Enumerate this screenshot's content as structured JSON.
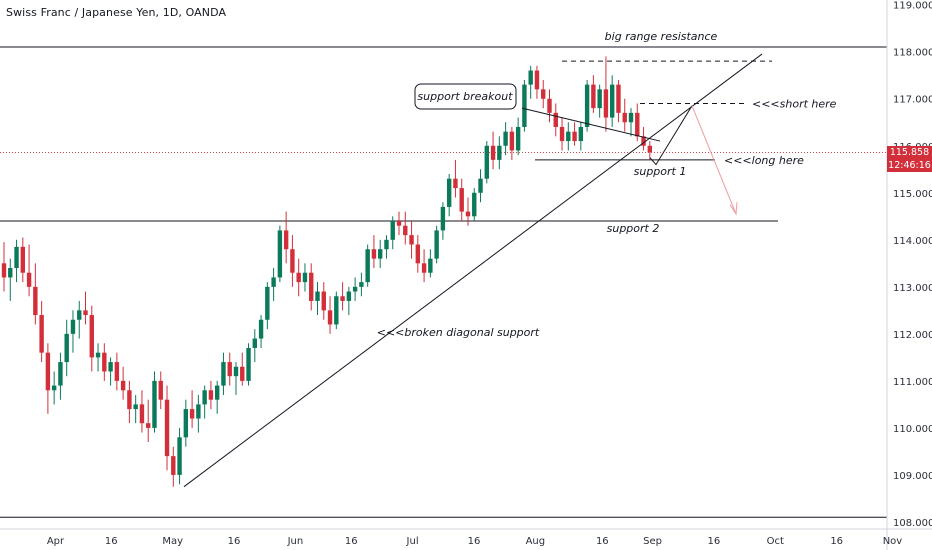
{
  "chart_data": {
    "type": "candlestick",
    "title": "Swiss Franc / Japanese Yen, 1D, OANDA",
    "symbol": "CHFJPY",
    "timeframe": "1D",
    "source": "OANDA",
    "y_axis": {
      "range": [
        107.85,
        119.1
      ],
      "ticks": [
        "108.000",
        "109.000",
        "110.000",
        "111.000",
        "112.000",
        "113.000",
        "114.000",
        "115.000",
        "116.000",
        "117.000",
        "118.000",
        "119.000"
      ]
    },
    "x_axis": {
      "ticks": [
        "Apr",
        "16",
        "May",
        "16",
        "Jun",
        "16",
        "Jul",
        "16",
        "Aug",
        "16",
        "Sep",
        "16",
        "Oct",
        "16",
        "Nov"
      ]
    },
    "current_price": "115.858",
    "countdown": "12:46:16",
    "colors": {
      "up": "#0b7a5a",
      "down": "#d32f3a",
      "line": "#131722",
      "projection": "#f19ba0",
      "axis_text": "#2a2e39"
    },
    "candles": [
      {
        "o": 113.5,
        "h": 113.95,
        "l": 112.9,
        "c": 113.2
      },
      {
        "o": 113.2,
        "h": 113.6,
        "l": 112.7,
        "c": 113.4
      },
      {
        "o": 113.4,
        "h": 114.0,
        "l": 113.1,
        "c": 113.85
      },
      {
        "o": 113.85,
        "h": 114.05,
        "l": 113.1,
        "c": 113.3
      },
      {
        "o": 113.3,
        "h": 113.9,
        "l": 112.8,
        "c": 113.0
      },
      {
        "o": 113.0,
        "h": 113.5,
        "l": 112.2,
        "c": 112.4
      },
      {
        "o": 112.4,
        "h": 112.7,
        "l": 111.4,
        "c": 111.6
      },
      {
        "o": 111.6,
        "h": 111.8,
        "l": 110.3,
        "c": 110.8
      },
      {
        "o": 110.8,
        "h": 111.2,
        "l": 110.5,
        "c": 110.9
      },
      {
        "o": 110.9,
        "h": 111.6,
        "l": 110.6,
        "c": 111.4
      },
      {
        "o": 111.4,
        "h": 112.3,
        "l": 111.1,
        "c": 112.0
      },
      {
        "o": 112.0,
        "h": 112.5,
        "l": 111.6,
        "c": 112.3
      },
      {
        "o": 112.3,
        "h": 112.7,
        "l": 111.9,
        "c": 112.5
      },
      {
        "o": 112.5,
        "h": 112.9,
        "l": 112.2,
        "c": 112.4
      },
      {
        "o": 112.4,
        "h": 112.6,
        "l": 111.2,
        "c": 111.5
      },
      {
        "o": 111.5,
        "h": 111.8,
        "l": 111.2,
        "c": 111.6
      },
      {
        "o": 111.6,
        "h": 111.8,
        "l": 111.0,
        "c": 111.2
      },
      {
        "o": 111.2,
        "h": 111.5,
        "l": 110.9,
        "c": 111.4
      },
      {
        "o": 111.4,
        "h": 111.6,
        "l": 110.8,
        "c": 111.0
      },
      {
        "o": 111.0,
        "h": 111.3,
        "l": 110.6,
        "c": 110.8
      },
      {
        "o": 110.8,
        "h": 111.0,
        "l": 110.1,
        "c": 110.4
      },
      {
        "o": 110.4,
        "h": 110.7,
        "l": 110.1,
        "c": 110.5
      },
      {
        "o": 110.5,
        "h": 110.8,
        "l": 109.9,
        "c": 110.1
      },
      {
        "o": 110.1,
        "h": 110.6,
        "l": 109.7,
        "c": 110.0
      },
      {
        "o": 110.0,
        "h": 111.2,
        "l": 109.9,
        "c": 111.0
      },
      {
        "o": 111.0,
        "h": 111.2,
        "l": 110.4,
        "c": 110.6
      },
      {
        "o": 110.6,
        "h": 110.9,
        "l": 109.1,
        "c": 109.4
      },
      {
        "o": 109.4,
        "h": 109.6,
        "l": 108.75,
        "c": 109.0
      },
      {
        "o": 109.0,
        "h": 110.0,
        "l": 108.8,
        "c": 109.8
      },
      {
        "o": 109.8,
        "h": 110.6,
        "l": 109.6,
        "c": 110.4
      },
      {
        "o": 110.4,
        "h": 110.8,
        "l": 110.0,
        "c": 110.2
      },
      {
        "o": 110.2,
        "h": 110.7,
        "l": 109.9,
        "c": 110.5
      },
      {
        "o": 110.5,
        "h": 110.9,
        "l": 110.2,
        "c": 110.8
      },
      {
        "o": 110.8,
        "h": 111.0,
        "l": 110.4,
        "c": 110.6
      },
      {
        "o": 110.6,
        "h": 111.0,
        "l": 110.3,
        "c": 110.9
      },
      {
        "o": 110.9,
        "h": 111.6,
        "l": 110.7,
        "c": 111.4
      },
      {
        "o": 111.4,
        "h": 111.6,
        "l": 110.9,
        "c": 111.1
      },
      {
        "o": 111.1,
        "h": 111.4,
        "l": 110.7,
        "c": 111.3
      },
      {
        "o": 111.3,
        "h": 111.6,
        "l": 110.9,
        "c": 111.0
      },
      {
        "o": 111.0,
        "h": 111.8,
        "l": 110.9,
        "c": 111.7
      },
      {
        "o": 111.7,
        "h": 112.1,
        "l": 111.4,
        "c": 111.9
      },
      {
        "o": 111.9,
        "h": 112.4,
        "l": 111.7,
        "c": 112.3
      },
      {
        "o": 112.3,
        "h": 113.1,
        "l": 112.1,
        "c": 113.0
      },
      {
        "o": 113.0,
        "h": 113.4,
        "l": 112.7,
        "c": 113.2
      },
      {
        "o": 113.2,
        "h": 114.3,
        "l": 113.1,
        "c": 114.2
      },
      {
        "o": 114.2,
        "h": 114.6,
        "l": 113.5,
        "c": 113.8
      },
      {
        "o": 113.8,
        "h": 114.1,
        "l": 113.0,
        "c": 113.3
      },
      {
        "o": 113.3,
        "h": 113.6,
        "l": 112.8,
        "c": 113.1
      },
      {
        "o": 113.1,
        "h": 113.5,
        "l": 112.9,
        "c": 113.3
      },
      {
        "o": 113.3,
        "h": 113.5,
        "l": 112.5,
        "c": 112.7
      },
      {
        "o": 112.7,
        "h": 113.1,
        "l": 112.4,
        "c": 112.9
      },
      {
        "o": 112.9,
        "h": 113.1,
        "l": 112.3,
        "c": 112.5
      },
      {
        "o": 112.5,
        "h": 112.8,
        "l": 112.0,
        "c": 112.2
      },
      {
        "o": 112.2,
        "h": 112.9,
        "l": 112.1,
        "c": 112.8
      },
      {
        "o": 112.8,
        "h": 113.1,
        "l": 112.5,
        "c": 112.7
      },
      {
        "o": 112.7,
        "h": 113.0,
        "l": 112.4,
        "c": 112.9
      },
      {
        "o": 112.9,
        "h": 113.2,
        "l": 112.7,
        "c": 113.0
      },
      {
        "o": 113.0,
        "h": 113.3,
        "l": 112.8,
        "c": 113.1
      },
      {
        "o": 113.1,
        "h": 113.9,
        "l": 113.0,
        "c": 113.8
      },
      {
        "o": 113.8,
        "h": 114.1,
        "l": 113.4,
        "c": 113.6
      },
      {
        "o": 113.6,
        "h": 114.0,
        "l": 113.4,
        "c": 113.8
      },
      {
        "o": 113.8,
        "h": 114.1,
        "l": 113.6,
        "c": 114.0
      },
      {
        "o": 114.0,
        "h": 114.5,
        "l": 113.8,
        "c": 114.4
      },
      {
        "o": 114.4,
        "h": 114.6,
        "l": 114.1,
        "c": 114.3
      },
      {
        "o": 114.3,
        "h": 114.6,
        "l": 113.9,
        "c": 114.1
      },
      {
        "o": 114.1,
        "h": 114.4,
        "l": 113.6,
        "c": 113.9
      },
      {
        "o": 113.9,
        "h": 114.1,
        "l": 113.3,
        "c": 113.5
      },
      {
        "o": 113.5,
        "h": 113.8,
        "l": 113.1,
        "c": 113.3
      },
      {
        "o": 113.3,
        "h": 113.8,
        "l": 113.2,
        "c": 113.6
      },
      {
        "o": 113.6,
        "h": 114.3,
        "l": 113.5,
        "c": 114.2
      },
      {
        "o": 114.2,
        "h": 114.8,
        "l": 114.0,
        "c": 114.7
      },
      {
        "o": 114.7,
        "h": 115.4,
        "l": 114.5,
        "c": 115.3
      },
      {
        "o": 115.3,
        "h": 115.7,
        "l": 114.9,
        "c": 115.1
      },
      {
        "o": 115.1,
        "h": 115.3,
        "l": 114.4,
        "c": 114.6
      },
      {
        "o": 114.6,
        "h": 114.9,
        "l": 114.3,
        "c": 114.5
      },
      {
        "o": 114.5,
        "h": 115.1,
        "l": 114.4,
        "c": 115.0
      },
      {
        "o": 115.0,
        "h": 115.5,
        "l": 114.8,
        "c": 115.3
      },
      {
        "o": 115.3,
        "h": 116.1,
        "l": 115.2,
        "c": 116.0
      },
      {
        "o": 116.0,
        "h": 116.3,
        "l": 115.5,
        "c": 115.7
      },
      {
        "o": 115.7,
        "h": 116.2,
        "l": 115.5,
        "c": 116.0
      },
      {
        "o": 116.0,
        "h": 116.5,
        "l": 115.8,
        "c": 116.3
      },
      {
        "o": 116.3,
        "h": 116.4,
        "l": 115.7,
        "c": 115.9
      },
      {
        "o": 115.9,
        "h": 116.6,
        "l": 115.8,
        "c": 116.4
      },
      {
        "o": 116.4,
        "h": 117.4,
        "l": 116.3,
        "c": 117.3
      },
      {
        "o": 117.3,
        "h": 117.7,
        "l": 117.0,
        "c": 117.6
      },
      {
        "o": 117.6,
        "h": 117.7,
        "l": 117.0,
        "c": 117.2
      },
      {
        "o": 117.2,
        "h": 117.4,
        "l": 116.8,
        "c": 117.0
      },
      {
        "o": 117.0,
        "h": 117.2,
        "l": 116.5,
        "c": 116.7
      },
      {
        "o": 116.7,
        "h": 116.9,
        "l": 116.2,
        "c": 116.4
      },
      {
        "o": 116.4,
        "h": 116.6,
        "l": 115.9,
        "c": 116.1
      },
      {
        "o": 116.1,
        "h": 116.5,
        "l": 115.9,
        "c": 116.3
      },
      {
        "o": 116.3,
        "h": 116.5,
        "l": 116.0,
        "c": 116.1
      },
      {
        "o": 116.1,
        "h": 116.5,
        "l": 115.9,
        "c": 116.4
      },
      {
        "o": 116.4,
        "h": 117.4,
        "l": 116.3,
        "c": 117.3
      },
      {
        "o": 117.3,
        "h": 117.5,
        "l": 116.7,
        "c": 116.8
      },
      {
        "o": 116.8,
        "h": 117.3,
        "l": 116.6,
        "c": 117.2
      },
      {
        "o": 117.2,
        "h": 117.9,
        "l": 116.3,
        "c": 116.6
      },
      {
        "o": 116.6,
        "h": 117.5,
        "l": 116.4,
        "c": 117.3
      },
      {
        "o": 117.3,
        "h": 117.4,
        "l": 116.5,
        "c": 116.7
      },
      {
        "o": 116.7,
        "h": 117.0,
        "l": 116.3,
        "c": 116.5
      },
      {
        "o": 116.5,
        "h": 116.8,
        "l": 116.2,
        "c": 116.7
      },
      {
        "o": 116.7,
        "h": 116.9,
        "l": 116.1,
        "c": 116.2
      },
      {
        "o": 116.2,
        "h": 116.4,
        "l": 115.9,
        "c": 116.0
      },
      {
        "o": 116.0,
        "h": 116.1,
        "l": 115.7,
        "c": 115.86
      }
    ],
    "annotations": {
      "resistance_label": "big range resistance",
      "short_label": "<<<short here",
      "long_label": "<<<long here",
      "support1_label": "support 1",
      "support2_label": "support 2",
      "diag_label": "<<<broken diagonal support",
      "callout_label": "support breakout"
    },
    "levels": {
      "resistance": 118.1,
      "bottom": 108.1,
      "support2": 114.4,
      "support1": 115.7,
      "range_top_dashed": 117.8,
      "short_dashed": 116.9
    }
  }
}
